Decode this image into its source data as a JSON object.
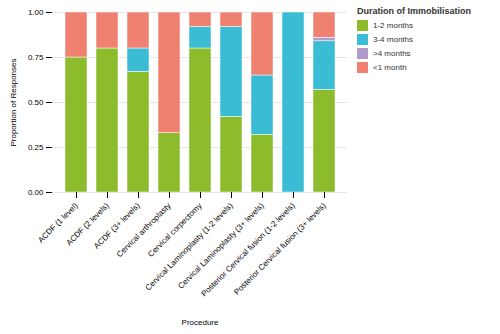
{
  "chart_data": {
    "type": "bar",
    "stacked": true,
    "categories": [
      "ACDF (1 level)",
      "ACDF (2 levels)",
      "ACDF (3+ levels)",
      "Cervical arthroplasty",
      "Cervical corpectomy",
      "Cervical Laminoplasty (1-2 levels)",
      "Cervical Laminoplasty (3+ levels)",
      "Posterior Cervical fusion (1-2 levels)",
      "Posterior Cervical fusion (3+ levels)"
    ],
    "series": [
      {
        "name": "1-2 months",
        "color": "#8CBB2C",
        "values": [
          0.75,
          0.8,
          0.67,
          0.33,
          0.8,
          0.42,
          0.32,
          0.0,
          0.57
        ]
      },
      {
        "name": "3-4 months",
        "color": "#39BCD4",
        "values": [
          0.0,
          0.0,
          0.13,
          0.0,
          0.12,
          0.5,
          0.33,
          1.0,
          0.27
        ]
      },
      {
        "name": ">4 months",
        "color": "#B09CC8",
        "values": [
          0.0,
          0.0,
          0.0,
          0.0,
          0.0,
          0.0,
          0.0,
          0.0,
          0.02
        ]
      },
      {
        "name": "<1 month",
        "color": "#F08070",
        "values": [
          0.25,
          0.2,
          0.2,
          0.67,
          0.08,
          0.08,
          0.35,
          0.0,
          0.14
        ]
      }
    ],
    "legend_title": "Duration of Immobilisation",
    "legend": "right",
    "xlabel": "Procedure",
    "ylabel": "Proportion of Responses",
    "ylim": [
      0,
      1.0
    ],
    "yticks": [
      {
        "value": 0,
        "label": "0.00"
      },
      {
        "value": 0.25,
        "label": "0.25"
      },
      {
        "value": 0.5,
        "label": "0.50"
      },
      {
        "value": 0.75,
        "label": "0.75"
      },
      {
        "value": 1.0,
        "label": "1.00"
      }
    ],
    "grid": true
  }
}
